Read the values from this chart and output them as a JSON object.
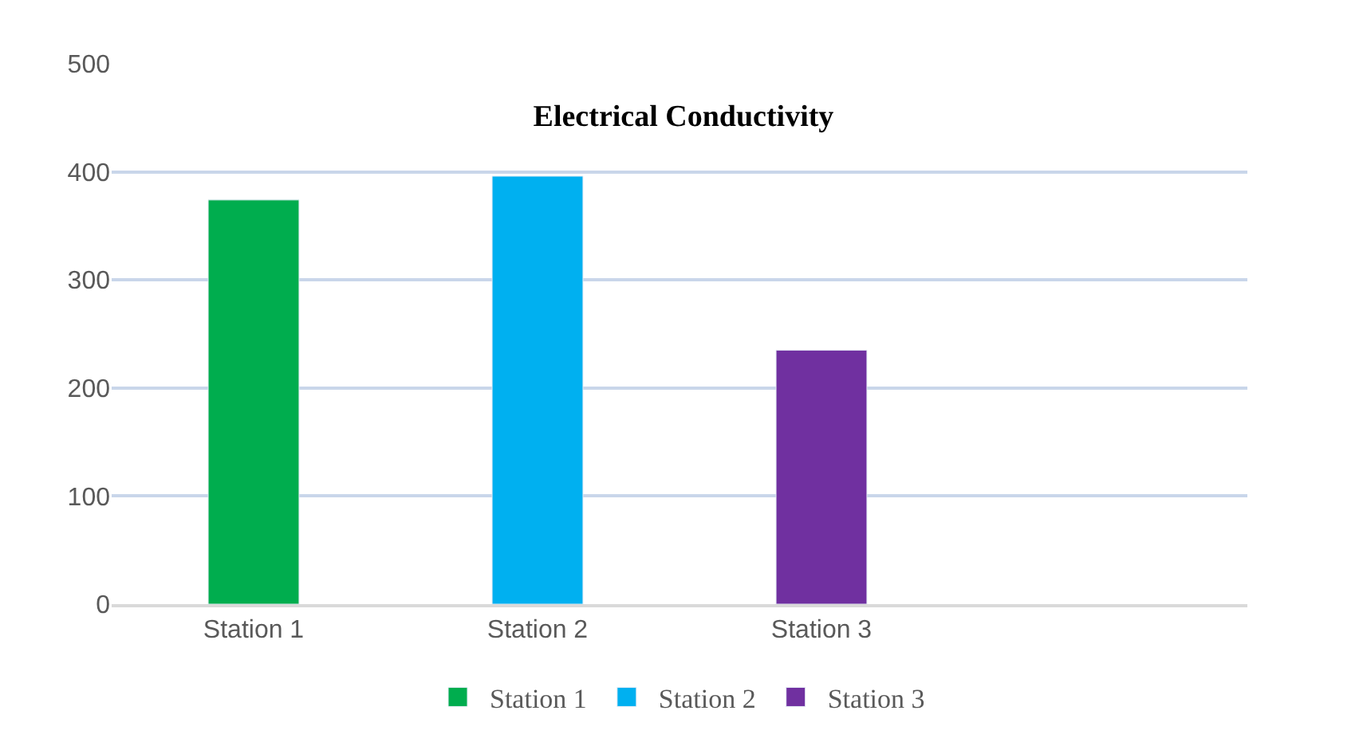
{
  "chart_data": {
    "type": "bar",
    "title": "Electrical Conductivity",
    "categories": [
      "Station 1",
      "Station 2",
      "Station 3",
      null
    ],
    "series": [
      {
        "name": "Station 1",
        "color": "#00ad4e",
        "values": [
          374,
          null,
          null,
          null
        ]
      },
      {
        "name": "Station 2",
        "color": "#00b0f0",
        "values": [
          null,
          396,
          null,
          null
        ]
      },
      {
        "name": "Station 3",
        "color": "#7030a0",
        "values": [
          null,
          null,
          235,
          null
        ]
      }
    ],
    "ylim": [
      0,
      500
    ],
    "yticks": [
      0,
      100,
      200,
      300,
      400,
      500
    ],
    "grid": "y",
    "legend": "bottom"
  }
}
